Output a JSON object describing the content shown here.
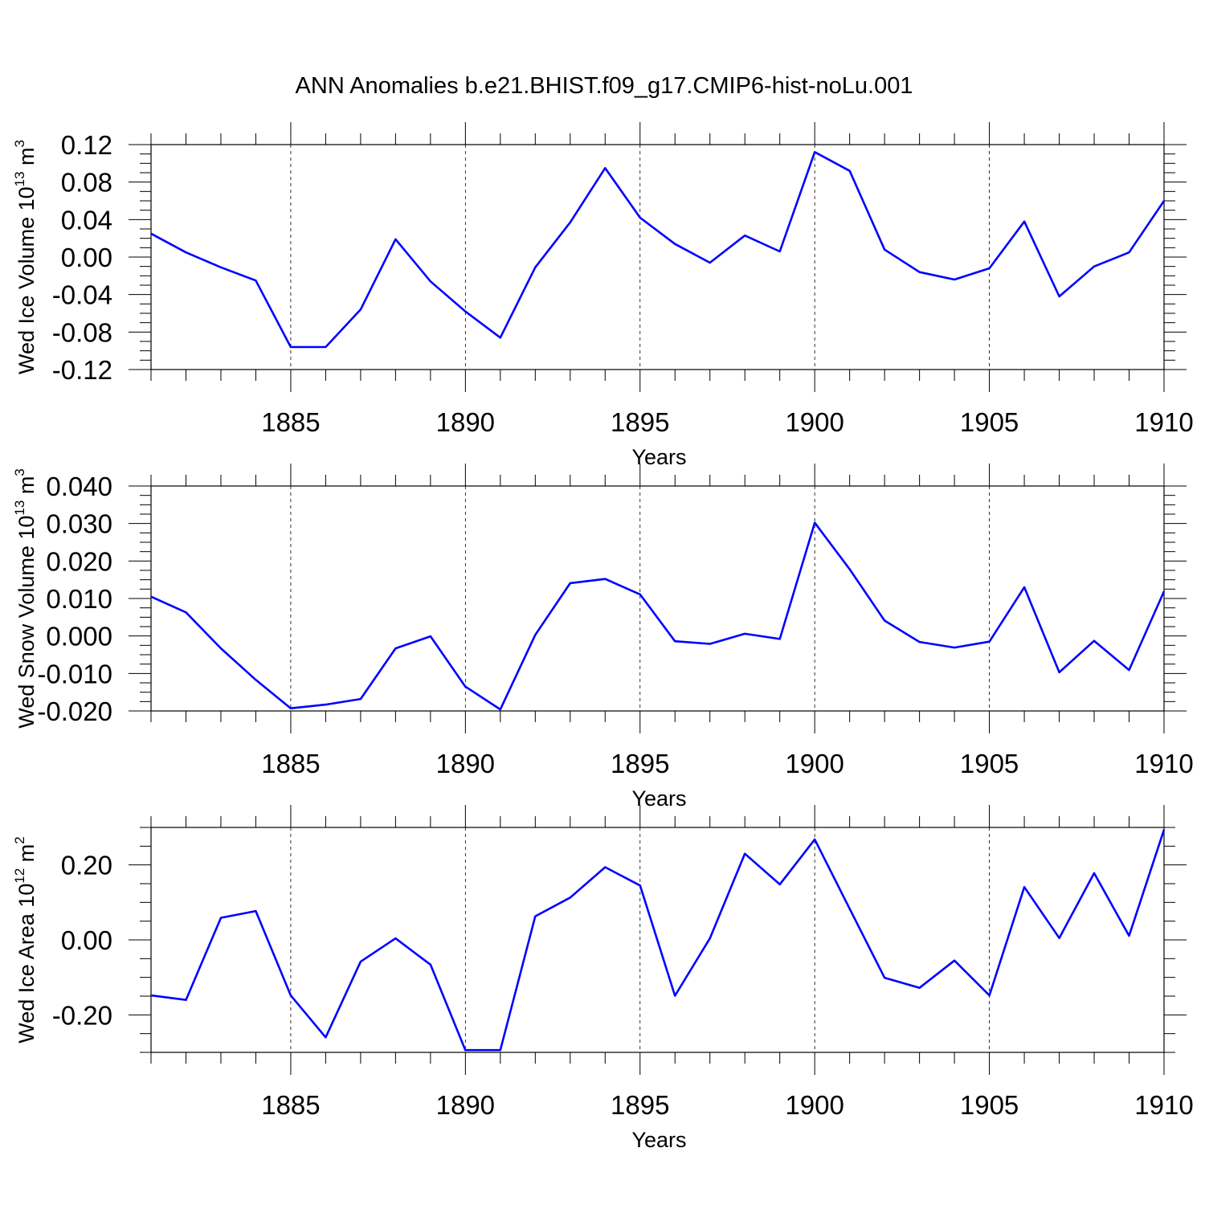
{
  "chart_data": {
    "title": "ANN Anomalies b.e21.BHIST.f09_g17.CMIP6-hist-noLu.001",
    "line_color": "#0000ff",
    "x": [
      1881,
      1882,
      1883,
      1884,
      1885,
      1886,
      1887,
      1888,
      1889,
      1890,
      1891,
      1892,
      1893,
      1894,
      1895,
      1896,
      1897,
      1898,
      1899,
      1900,
      1901,
      1902,
      1903,
      1904,
      1905,
      1906,
      1907,
      1908,
      1909,
      1910
    ],
    "xlim": [
      1881,
      1910
    ],
    "xticks": [
      1885,
      1890,
      1895,
      1900,
      1905,
      1910
    ],
    "xtick_labels": [
      "1885",
      "1890",
      "1895",
      "1900",
      "1905",
      "1910"
    ],
    "panels": [
      {
        "type": "line",
        "xlabel": "Years",
        "ylabel": "Wed Ice Volume 10",
        "ylabel_exp": "13",
        "ylabel_unit": "m",
        "ylabel_unit_exp": "3",
        "ylim": [
          -0.12,
          0.12
        ],
        "yticks": [
          0.12,
          0.08,
          0.04,
          0.0,
          -0.04,
          -0.08,
          -0.12
        ],
        "ytick_labels": [
          "0.12",
          "0.08",
          "0.04",
          "0.00",
          "-0.04",
          "-0.08",
          "-0.12"
        ],
        "values": [
          0.025,
          0.005,
          -0.011,
          -0.025,
          -0.096,
          -0.096,
          -0.056,
          0.019,
          -0.026,
          -0.058,
          -0.086,
          -0.011,
          0.037,
          0.095,
          0.042,
          0.014,
          -0.006,
          0.023,
          0.006,
          0.112,
          0.092,
          0.008,
          -0.016,
          -0.024,
          -0.012,
          0.038,
          -0.042,
          -0.01,
          0.005,
          0.06
        ]
      },
      {
        "type": "line",
        "xlabel": "Years",
        "ylabel": "Wed Snow Volume 10",
        "ylabel_exp": "13",
        "ylabel_unit": "m",
        "ylabel_unit_exp": "3",
        "ylim": [
          -0.02,
          0.04
        ],
        "yticks": [
          0.04,
          0.03,
          0.02,
          0.01,
          0.0,
          -0.01,
          -0.02
        ],
        "ytick_labels": [
          "0.040",
          "0.030",
          "0.020",
          "0.010",
          "0.000",
          "-0.010",
          "-0.020"
        ],
        "values": [
          0.0105,
          0.0063,
          -0.0033,
          -0.0117,
          -0.0193,
          -0.0183,
          -0.0168,
          -0.0033,
          -0.0001,
          -0.0135,
          -0.0196,
          0.0003,
          0.0141,
          0.0152,
          0.0111,
          -0.0014,
          -0.0021,
          0.0006,
          -0.0008,
          0.0302,
          0.0178,
          0.0041,
          -0.0016,
          -0.0031,
          -0.0015,
          0.013,
          -0.0097,
          -0.0013,
          -0.0091,
          0.0119
        ]
      },
      {
        "type": "line",
        "xlabel": "Years",
        "ylabel": "Wed Ice Area 10",
        "ylabel_exp": "12",
        "ylabel_unit": "m",
        "ylabel_unit_exp": "2",
        "ylim": [
          -0.3,
          0.3
        ],
        "yticks": [
          0.2,
          0.0,
          -0.2
        ],
        "ytick_labels": [
          "0.20",
          "0.00",
          "-0.20"
        ],
        "values": [
          -0.148,
          -0.16,
          0.059,
          0.077,
          -0.148,
          -0.26,
          -0.058,
          0.004,
          -0.066,
          -0.294,
          -0.294,
          0.063,
          0.113,
          0.194,
          0.145,
          -0.149,
          0.004,
          0.23,
          0.148,
          0.268,
          0.083,
          -0.101,
          -0.128,
          -0.055,
          -0.148,
          0.141,
          0.005,
          0.178,
          0.011,
          0.294
        ]
      }
    ]
  }
}
